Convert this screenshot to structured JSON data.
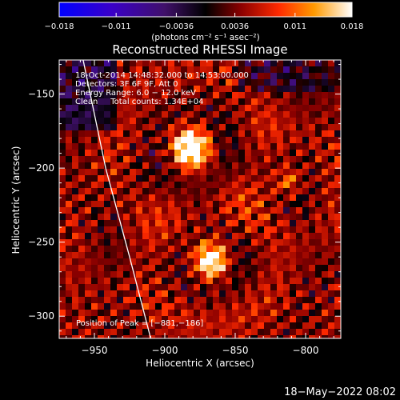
{
  "chart_data": {
    "type": "heatmap",
    "title": "Reconstructed RHESSI Image",
    "xlabel": "Heliocentric X (arcsec)",
    "ylabel": "Heliocentric Y (arcsec)",
    "xlim": [
      -975,
      -775
    ],
    "ylim": [
      -315,
      -127
    ],
    "xticks": [
      -950,
      -900,
      -850,
      -800
    ],
    "yticks": [
      -150,
      -200,
      -250,
      -300
    ],
    "colorbar": {
      "range": [
        -0.018,
        0.018
      ],
      "ticks": [
        -0.018,
        -0.011,
        -0.0036,
        0.0036,
        0.011,
        0.018
      ],
      "tick_labels": [
        "−0.018",
        "−0.011",
        "−0.0036",
        "0.0036",
        "0.011",
        "0.018"
      ],
      "units_label": "(photons cm⁻² s⁻¹ asec⁻²)",
      "colormap": "purple-black-red-orange-yellow-white"
    },
    "info_lines": [
      "18-Oct-2014 14:48:32.000 to 14:53:00.000",
      "Detectors: 3F 6F 9F, Att 0",
      "Energy Range: 6.0 − 12.0 keV",
      "Clean     Total counts: 1.34E+04"
    ],
    "peak_label": "Position of Peak = [−881,−186]",
    "sources": [
      {
        "x": -881,
        "y": -186,
        "peak": 0.018
      },
      {
        "x": -867,
        "y": -261,
        "peak": 0.017
      },
      {
        "x": -812,
        "y": -208,
        "peak": 0.008
      }
    ],
    "limb_curve": [
      [
        -958,
        -127
      ],
      [
        -942,
        -200
      ],
      [
        -925,
        -260
      ],
      [
        -910,
        -315
      ]
    ],
    "timestamp": "18−May−2022 08:02"
  },
  "colors": {
    "background": "#000000",
    "axes": "#ffffff",
    "limb": "#ffffff"
  }
}
